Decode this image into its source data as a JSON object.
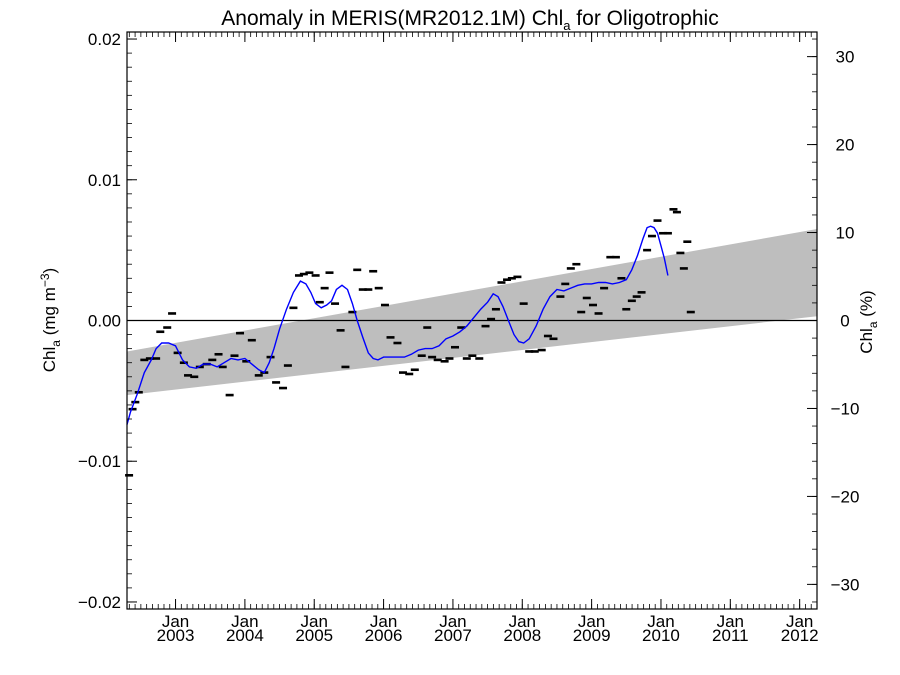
{
  "chart_data": {
    "type": "scatter",
    "title_main": "Anomaly in MERIS(MR2012.1M) Chl",
    "title_sub": "a",
    "title_end": " for Oligotrophic",
    "ylabel_left": {
      "main": "Chl",
      "sub": "a",
      "rest": " (mg m",
      "sup": "−3",
      "close": ")"
    },
    "ylabel_right": {
      "main": "Chl",
      "sub": "a",
      "rest": " (%)"
    },
    "xlim": [
      2002.3,
      2012.25
    ],
    "ylim": [
      -0.0205,
      0.0205
    ],
    "y2lim": [
      -32.8,
      32.8
    ],
    "x_ticks": [
      {
        "x": 2003.0,
        "top": "Jan",
        "bottom": "2003"
      },
      {
        "x": 2004.0,
        "top": "Jan",
        "bottom": "2004"
      },
      {
        "x": 2005.0,
        "top": "Jan",
        "bottom": "2005"
      },
      {
        "x": 2006.0,
        "top": "Jan",
        "bottom": "2006"
      },
      {
        "x": 2007.0,
        "top": "Jan",
        "bottom": "2007"
      },
      {
        "x": 2008.0,
        "top": "Jan",
        "bottom": "2008"
      },
      {
        "x": 2009.0,
        "top": "Jan",
        "bottom": "2009"
      },
      {
        "x": 2010.0,
        "top": "Jan",
        "bottom": "2010"
      },
      {
        "x": 2011.0,
        "top": "Jan",
        "bottom": "2011"
      },
      {
        "x": 2012.0,
        "top": "Jan",
        "bottom": "2012"
      }
    ],
    "y_ticks": [
      {
        "value": -0.02,
        "label": "−0.02"
      },
      {
        "value": -0.01,
        "label": "−0.01"
      },
      {
        "value": 0.0,
        "label": "0.00"
      },
      {
        "value": 0.01,
        "label": "0.01"
      },
      {
        "value": 0.02,
        "label": "0.02"
      }
    ],
    "y2_ticks": [
      {
        "value": -30,
        "label": "−30"
      },
      {
        "value": -20,
        "label": "−20"
      },
      {
        "value": -10,
        "label": "−10"
      },
      {
        "value": 0,
        "label": "0"
      },
      {
        "value": 10,
        "label": "10"
      },
      {
        "value": 20,
        "label": "20"
      },
      {
        "value": 30,
        "label": "30"
      }
    ],
    "trend_band": {
      "start": {
        "x": 2002.3,
        "lower": -0.0053,
        "upper": -0.0022
      },
      "end": {
        "x": 2012.25,
        "lower": 0.0003,
        "upper": 0.0065
      },
      "color": "#bebebe"
    },
    "zero_line": 0.0,
    "colors": {
      "points": "#000000",
      "smooth": "#0000ff",
      "band": "#bebebe"
    },
    "points": [
      [
        2002.33,
        -0.011
      ],
      [
        2002.38,
        -0.0063
      ],
      [
        2002.42,
        -0.0058
      ],
      [
        2002.47,
        -0.0051
      ],
      [
        2002.55,
        -0.0028
      ],
      [
        2002.63,
        -0.0027
      ],
      [
        2002.72,
        -0.0027
      ],
      [
        2002.78,
        -0.0008
      ],
      [
        2002.88,
        -0.0005
      ],
      [
        2002.95,
        0.0005
      ],
      [
        2003.03,
        -0.0023
      ],
      [
        2003.12,
        -0.003
      ],
      [
        2003.18,
        -0.0039
      ],
      [
        2003.27,
        -0.004
      ],
      [
        2003.35,
        -0.0033
      ],
      [
        2003.45,
        -0.0031
      ],
      [
        2003.53,
        -0.0028
      ],
      [
        2003.62,
        -0.0024
      ],
      [
        2003.68,
        -0.0033
      ],
      [
        2003.78,
        -0.0053
      ],
      [
        2003.85,
        -0.0025
      ],
      [
        2003.93,
        -0.0009
      ],
      [
        2004.02,
        -0.0029
      ],
      [
        2004.1,
        -0.0014
      ],
      [
        2004.2,
        -0.0039
      ],
      [
        2004.28,
        -0.0037
      ],
      [
        2004.37,
        -0.0026
      ],
      [
        2004.45,
        -0.0044
      ],
      [
        2004.55,
        -0.0048
      ],
      [
        2004.62,
        -0.0032
      ],
      [
        2004.7,
        0.0009
      ],
      [
        2004.78,
        0.0032
      ],
      [
        2004.85,
        0.0033
      ],
      [
        2004.93,
        0.0034
      ],
      [
        2005.02,
        0.0032
      ],
      [
        2005.08,
        0.0013
      ],
      [
        2005.15,
        0.0023
      ],
      [
        2005.22,
        0.0034
      ],
      [
        2005.3,
        0.0012
      ],
      [
        2005.38,
        -0.0007
      ],
      [
        2005.45,
        -0.0033
      ],
      [
        2005.55,
        0.0006
      ],
      [
        2005.62,
        0.0036
      ],
      [
        2005.7,
        0.0022
      ],
      [
        2005.78,
        0.0022
      ],
      [
        2005.85,
        0.0035
      ],
      [
        2005.93,
        0.0023
      ],
      [
        2006.02,
        0.0011
      ],
      [
        2006.1,
        -0.0012
      ],
      [
        2006.2,
        -0.0016
      ],
      [
        2006.28,
        -0.0037
      ],
      [
        2006.37,
        -0.0038
      ],
      [
        2006.45,
        -0.0035
      ],
      [
        2006.55,
        -0.0025
      ],
      [
        2006.63,
        -0.0005
      ],
      [
        2006.7,
        -0.0026
      ],
      [
        2006.78,
        -0.0028
      ],
      [
        2006.88,
        -0.0029
      ],
      [
        2006.95,
        -0.0027
      ],
      [
        2007.03,
        -0.0019
      ],
      [
        2007.12,
        -0.0005
      ],
      [
        2007.2,
        -0.0027
      ],
      [
        2007.28,
        -0.0025
      ],
      [
        2007.38,
        -0.0027
      ],
      [
        2007.47,
        -0.0004
      ],
      [
        2007.55,
        0.0001
      ],
      [
        2007.62,
        0.0008
      ],
      [
        2007.7,
        0.0027
      ],
      [
        2007.78,
        0.0029
      ],
      [
        2007.85,
        0.003
      ],
      [
        2007.93,
        0.0031
      ],
      [
        2008.02,
        0.0012
      ],
      [
        2008.1,
        -0.0022
      ],
      [
        2008.18,
        -0.0022
      ],
      [
        2008.28,
        -0.0021
      ],
      [
        2008.37,
        -0.0011
      ],
      [
        2008.45,
        -0.0013
      ],
      [
        2008.55,
        0.0017
      ],
      [
        2008.62,
        0.0026
      ],
      [
        2008.7,
        0.0037
      ],
      [
        2008.78,
        0.004
      ],
      [
        2008.85,
        0.0006
      ],
      [
        2008.93,
        0.0016
      ],
      [
        2009.02,
        0.0011
      ],
      [
        2009.1,
        0.0005
      ],
      [
        2009.18,
        0.0023
      ],
      [
        2009.27,
        0.0045
      ],
      [
        2009.35,
        0.0045
      ],
      [
        2009.43,
        0.003
      ],
      [
        2009.5,
        0.0008
      ],
      [
        2009.58,
        0.0014
      ],
      [
        2009.65,
        0.0017
      ],
      [
        2009.72,
        0.002
      ],
      [
        2009.8,
        0.005
      ],
      [
        2009.87,
        0.006
      ],
      [
        2009.95,
        0.0071
      ],
      [
        2010.03,
        0.0062
      ],
      [
        2010.1,
        0.0062
      ],
      [
        2010.18,
        0.0079
      ],
      [
        2010.23,
        0.0077
      ],
      [
        2010.28,
        0.0048
      ],
      [
        2010.33,
        0.0037
      ],
      [
        2010.38,
        0.0056
      ],
      [
        2010.43,
        0.0006
      ]
    ],
    "smooth": [
      [
        2002.3,
        -0.0074
      ],
      [
        2002.35,
        -0.0065
      ],
      [
        2002.45,
        -0.0052
      ],
      [
        2002.55,
        -0.0037
      ],
      [
        2002.65,
        -0.0028
      ],
      [
        2002.72,
        -0.002
      ],
      [
        2002.8,
        -0.0016
      ],
      [
        2002.9,
        -0.0016
      ],
      [
        2003.0,
        -0.0018
      ],
      [
        2003.1,
        -0.0028
      ],
      [
        2003.2,
        -0.0033
      ],
      [
        2003.3,
        -0.0034
      ],
      [
        2003.4,
        -0.0031
      ],
      [
        2003.5,
        -0.0031
      ],
      [
        2003.6,
        -0.0033
      ],
      [
        2003.7,
        -0.003
      ],
      [
        2003.8,
        -0.0027
      ],
      [
        2003.9,
        -0.0028
      ],
      [
        2004.0,
        -0.0027
      ],
      [
        2004.1,
        -0.0031
      ],
      [
        2004.2,
        -0.0035
      ],
      [
        2004.28,
        -0.0037
      ],
      [
        2004.35,
        -0.003
      ],
      [
        2004.42,
        -0.002
      ],
      [
        2004.5,
        -0.0006
      ],
      [
        2004.6,
        0.0008
      ],
      [
        2004.7,
        0.002
      ],
      [
        2004.8,
        0.0028
      ],
      [
        2004.88,
        0.0026
      ],
      [
        2004.95,
        0.002
      ],
      [
        2005.02,
        0.0012
      ],
      [
        2005.1,
        0.0009
      ],
      [
        2005.18,
        0.0011
      ],
      [
        2005.25,
        0.0014
      ],
      [
        2005.32,
        0.0022
      ],
      [
        2005.4,
        0.0025
      ],
      [
        2005.48,
        0.0022
      ],
      [
        2005.55,
        0.0012
      ],
      [
        2005.62,
        0.0
      ],
      [
        2005.7,
        -0.0012
      ],
      [
        2005.78,
        -0.0023
      ],
      [
        2005.85,
        -0.0027
      ],
      [
        2005.92,
        -0.0028
      ],
      [
        2006.0,
        -0.0026
      ],
      [
        2006.1,
        -0.0026
      ],
      [
        2006.2,
        -0.0026
      ],
      [
        2006.3,
        -0.0026
      ],
      [
        2006.4,
        -0.0024
      ],
      [
        2006.5,
        -0.0021
      ],
      [
        2006.6,
        -0.002
      ],
      [
        2006.7,
        -0.002
      ],
      [
        2006.8,
        -0.0018
      ],
      [
        2006.9,
        -0.0013
      ],
      [
        2007.0,
        -0.0011
      ],
      [
        2007.1,
        -0.0008
      ],
      [
        2007.2,
        -0.0004
      ],
      [
        2007.3,
        0.0002
      ],
      [
        2007.4,
        0.0008
      ],
      [
        2007.5,
        0.0013
      ],
      [
        2007.58,
        0.0019
      ],
      [
        2007.65,
        0.0017
      ],
      [
        2007.72,
        0.001
      ],
      [
        2007.8,
        0.0
      ],
      [
        2007.88,
        -0.001
      ],
      [
        2007.95,
        -0.0015
      ],
      [
        2008.02,
        -0.0016
      ],
      [
        2008.1,
        -0.0013
      ],
      [
        2008.2,
        -0.0004
      ],
      [
        2008.3,
        0.0008
      ],
      [
        2008.4,
        0.0017
      ],
      [
        2008.5,
        0.0022
      ],
      [
        2008.6,
        0.0021
      ],
      [
        2008.7,
        0.0023
      ],
      [
        2008.8,
        0.0025
      ],
      [
        2008.9,
        0.0026
      ],
      [
        2009.0,
        0.0026
      ],
      [
        2009.1,
        0.0027
      ],
      [
        2009.2,
        0.0027
      ],
      [
        2009.3,
        0.0026
      ],
      [
        2009.4,
        0.0027
      ],
      [
        2009.5,
        0.0029
      ],
      [
        2009.58,
        0.0036
      ],
      [
        2009.66,
        0.0046
      ],
      [
        2009.74,
        0.0058
      ],
      [
        2009.8,
        0.0066
      ],
      [
        2009.85,
        0.0067
      ],
      [
        2009.9,
        0.0066
      ],
      [
        2009.95,
        0.0062
      ],
      [
        2010.0,
        0.0053
      ],
      [
        2010.05,
        0.0044
      ],
      [
        2010.1,
        0.0032
      ]
    ]
  }
}
